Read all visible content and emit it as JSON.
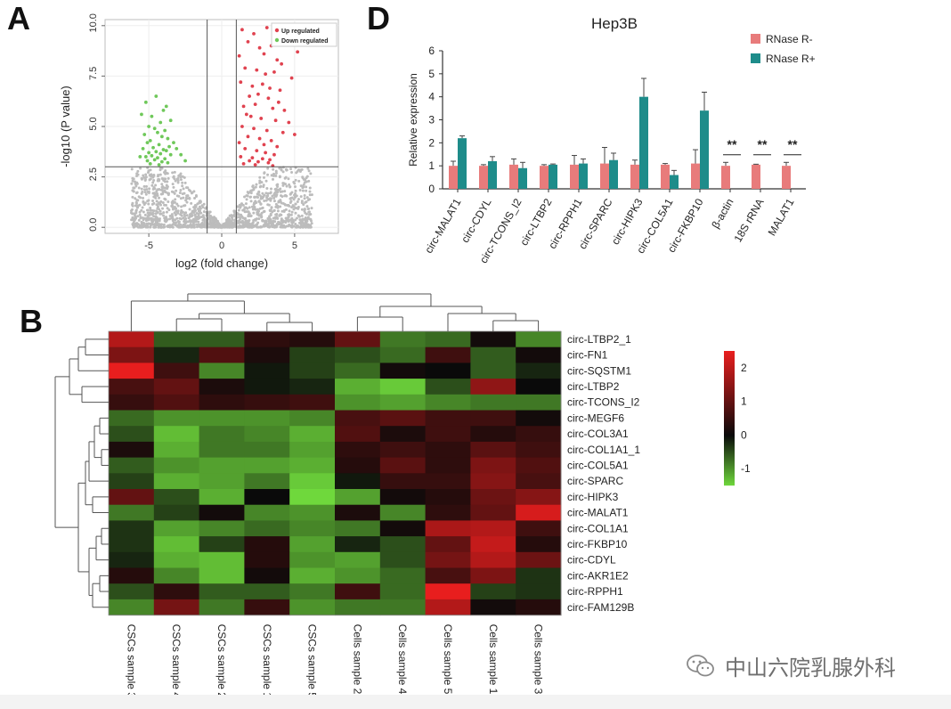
{
  "panels": {
    "a": "A",
    "b": "B",
    "d": "D"
  },
  "watermark": {
    "text": "中山六院乳腺外科",
    "icon": "wechat-icon"
  },
  "chart_data": [
    {
      "panel": "A",
      "type": "scatter",
      "xlabel": "log2 (fold change)",
      "ylabel": "-log10 (P value)",
      "xticks": [
        "-5",
        "0",
        "5"
      ],
      "yticks": [
        "0.0",
        "2.5",
        "5.0",
        "7.5",
        "10.0"
      ],
      "xlim": [
        -8,
        8
      ],
      "ylim": [
        -0.3,
        10.3
      ],
      "thresholds": {
        "x": [
          -1,
          1
        ],
        "y": 3
      },
      "legend": {
        "placement": "top-right",
        "entries": [
          "Up regulated",
          "Down regulated"
        ]
      },
      "colors": {
        "up": "#e0424f",
        "down": "#6fc85a",
        "ns": "#bcbcbc"
      },
      "series": [
        {
          "name": "Up regulated",
          "x": [
            1.4,
            2.2,
            3.1,
            4.5,
            1.8,
            2.6,
            3.4,
            5.2,
            1.2,
            2.9,
            3.8,
            4.1,
            1.6,
            2.4,
            3.0,
            3.6,
            4.8,
            1.3,
            2.1,
            2.8,
            3.3,
            4.0,
            1.9,
            2.5,
            3.2,
            3.9,
            1.5,
            2.3,
            3.5,
            4.3,
            1.7,
            2.0,
            2.7,
            3.7,
            4.6,
            1.4,
            2.2,
            3.1,
            4.2,
            5.0,
            1.8,
            2.6,
            3.4,
            1.2,
            2.9,
            3.8,
            1.6,
            2.4,
            3.0,
            3.6,
            1.3,
            2.1,
            2.8,
            3.3,
            1.9,
            2.5,
            3.2,
            1.5,
            2.3,
            3.5
          ],
          "y": [
            9.8,
            9.6,
            9.9,
            9.5,
            9.2,
            8.9,
            9.0,
            8.7,
            8.5,
            8.6,
            8.3,
            8.1,
            7.9,
            7.8,
            7.6,
            7.7,
            7.4,
            7.2,
            7.0,
            7.1,
            6.9,
            6.8,
            6.5,
            6.6,
            6.4,
            6.2,
            6.0,
            6.1,
            5.9,
            5.8,
            5.6,
            5.5,
            5.4,
            5.3,
            5.2,
            5.0,
            4.9,
            4.8,
            4.7,
            4.6,
            4.5,
            4.4,
            4.3,
            4.2,
            4.1,
            4.0,
            3.9,
            3.8,
            3.7,
            3.6,
            3.5,
            3.45,
            3.4,
            3.35,
            3.3,
            3.25,
            3.2,
            3.15,
            3.1,
            3.05
          ]
        },
        {
          "name": "Down regulated",
          "x": [
            -4.5,
            -5.2,
            -3.8,
            -4.0,
            -5.5,
            -4.8,
            -3.5,
            -4.2,
            -5.0,
            -4.6,
            -3.9,
            -4.4,
            -5.3,
            -4.1,
            -3.7,
            -4.9,
            -5.1,
            -4.3,
            -3.6,
            -4.7,
            -5.4,
            -4.0,
            -3.8,
            -4.5,
            -5.0,
            -4.2,
            -3.5,
            -4.8,
            -5.2,
            -4.4,
            -3.9,
            -4.6,
            -5.1,
            -4.1,
            -3.7,
            -4.9,
            -2.8,
            -3.1,
            -2.5,
            -3.3,
            -5.6,
            -4.3
          ],
          "y": [
            6.5,
            6.2,
            6.0,
            5.8,
            5.6,
            5.5,
            5.3,
            5.2,
            5.0,
            4.9,
            4.8,
            4.7,
            4.6,
            4.5,
            4.4,
            4.3,
            4.2,
            4.1,
            4.0,
            3.95,
            3.9,
            3.85,
            3.8,
            3.75,
            3.7,
            3.65,
            3.6,
            3.55,
            3.5,
            3.45,
            3.4,
            3.35,
            3.3,
            3.25,
            3.2,
            3.15,
            3.6,
            3.9,
            3.3,
            4.2,
            3.5,
            3.1
          ]
        }
      ]
    },
    {
      "panel": "D",
      "type": "bar",
      "title": "Hep3B",
      "ylabel": "Relative expression",
      "ylim": [
        0,
        6
      ],
      "yticks": [
        "0",
        "1",
        "2",
        "3",
        "4",
        "5",
        "6"
      ],
      "categories": [
        "circ-MALAT1",
        "circ-CDYL",
        "circ-TCONS_I2",
        "circ-LTBP2",
        "circ-RPPH1",
        "circ-SPARC",
        "circ-HIPK3",
        "circ-COL5A1",
        "circ-FKBP10",
        "β-actin",
        "18S rRNA",
        "MALAT1"
      ],
      "series": [
        {
          "name": "RNase R-",
          "color": "#e87b7b",
          "values": [
            1.0,
            1.0,
            1.05,
            1.0,
            1.05,
            1.1,
            1.05,
            1.05,
            1.1,
            1.0,
            1.05,
            1.0
          ],
          "errors": [
            0.2,
            0.05,
            0.25,
            0.05,
            0.4,
            0.7,
            0.2,
            0.05,
            0.6,
            0.15,
            0.02,
            0.15
          ]
        },
        {
          "name": "RNase R+",
          "color": "#1e8c8a",
          "values": [
            2.2,
            1.2,
            0.9,
            1.05,
            1.1,
            1.25,
            4.0,
            0.6,
            3.4,
            0.0,
            0.0,
            0.0
          ],
          "errors": [
            0.1,
            0.2,
            0.25,
            0.03,
            0.2,
            0.3,
            0.8,
            0.2,
            0.8,
            0,
            0,
            0
          ]
        }
      ],
      "annotations": [
        {
          "category": "β-actin",
          "text": "**"
        },
        {
          "category": "18S rRNA",
          "text": "**"
        },
        {
          "category": "MALAT1",
          "text": "**"
        }
      ]
    },
    {
      "panel": "B",
      "type": "heatmap",
      "columns": [
        "CSCs sample 3",
        "CSCs sample 4",
        "CSCs sample 2",
        "CSCs sample 1",
        "CSCs sample 5",
        "Cells sample 2",
        "Cells sample 4",
        "Cells sample 5",
        "Cells sample 1",
        "Cells sample 3"
      ],
      "rows": [
        "circ-LTBP2_1",
        "circ-FN1",
        "circ-SQSTM1",
        "circ-LTBP2",
        "circ-TCONS_I2",
        "circ-MEGF6",
        "circ-COL3A1",
        "circ-COL1A1_1",
        "circ-COL5A1",
        "circ-SPARC",
        "circ-HIPK3",
        "circ-MALAT1",
        "circ-COL1A1",
        "circ-FKBP10",
        "circ-CDYL",
        "circ-AKR1E2",
        "circ-RPPH1",
        "circ-FAM129B"
      ],
      "values": [
        [
          1.9,
          -0.6,
          -0.6,
          0.4,
          0.3,
          1.0,
          -0.8,
          -0.7,
          0.1,
          -0.9
        ],
        [
          1.3,
          -0.2,
          0.8,
          0.2,
          -0.4,
          -0.5,
          -0.7,
          0.6,
          -0.6,
          0.1
        ],
        [
          2.6,
          0.6,
          -0.9,
          -0.1,
          -0.4,
          -0.7,
          0.1,
          0.0,
          -0.6,
          -0.2
        ],
        [
          0.7,
          1.0,
          0.2,
          -0.1,
          -0.2,
          -1.2,
          -1.4,
          -0.5,
          1.5,
          0.0
        ],
        [
          0.5,
          0.8,
          0.4,
          0.5,
          0.6,
          -1.0,
          -1.1,
          -0.9,
          -0.8,
          -0.8
        ],
        [
          -0.7,
          -1.0,
          -1.0,
          -1.0,
          -0.9,
          0.7,
          0.9,
          0.6,
          0.6,
          0.1
        ],
        [
          -0.5,
          -1.3,
          -0.8,
          -0.9,
          -1.2,
          0.8,
          0.2,
          0.6,
          0.3,
          0.5
        ],
        [
          0.2,
          -1.2,
          -0.8,
          -0.8,
          -1.1,
          0.4,
          0.6,
          0.4,
          0.9,
          0.6
        ],
        [
          -0.6,
          -1.0,
          -1.1,
          -1.1,
          -1.2,
          0.3,
          0.9,
          0.4,
          1.3,
          0.8
        ],
        [
          -0.4,
          -1.2,
          -1.1,
          -0.8,
          -1.4,
          -0.1,
          0.5,
          0.5,
          1.4,
          0.7
        ],
        [
          1.0,
          -0.5,
          -1.2,
          0.0,
          -1.5,
          -1.1,
          0.1,
          0.3,
          1.1,
          1.4
        ],
        [
          -0.8,
          -0.4,
          0.1,
          -0.9,
          -1.0,
          0.2,
          -0.9,
          0.4,
          1.0,
          2.3
        ],
        [
          -0.3,
          -1.1,
          -0.9,
          -0.7,
          -0.9,
          -0.8,
          0.1,
          1.8,
          1.9,
          0.6
        ],
        [
          -0.3,
          -1.3,
          -0.4,
          0.3,
          -1.1,
          -0.2,
          -0.5,
          1.0,
          2.1,
          0.3
        ],
        [
          -0.2,
          -1.2,
          -1.3,
          0.3,
          -1.0,
          -1.1,
          -0.5,
          1.2,
          1.9,
          1.1
        ],
        [
          0.3,
          -0.9,
          -1.3,
          0.1,
          -1.2,
          -1.0,
          -0.7,
          0.7,
          1.3,
          -0.3
        ],
        [
          -0.5,
          0.4,
          -0.6,
          -0.6,
          -0.8,
          0.6,
          -0.7,
          2.6,
          -0.4,
          -0.3
        ],
        [
          -0.9,
          1.2,
          -0.8,
          0.5,
          -1.0,
          -0.8,
          -0.8,
          1.9,
          0.1,
          0.3
        ]
      ],
      "color_scale": {
        "min": -1.5,
        "max": 2.5,
        "ticks": [
          "2",
          "1",
          "0",
          "-1"
        ],
        "colors": [
          "#6fd83c",
          "#0a0a0a",
          "#e81e1e"
        ]
      }
    }
  ]
}
